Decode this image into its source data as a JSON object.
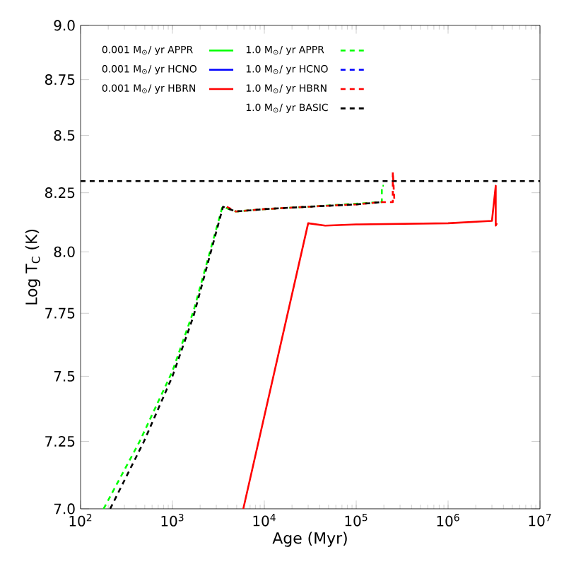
{
  "chart_data": {
    "type": "line",
    "xlabel": "Age (Myr)",
    "ylabel": "Log T$_{C}$ (K)",
    "log": "xy",
    "legend": "top left",
    "grid": false,
    "marker": "none",
    "xlim": [
      100,
      10000000
    ],
    "xticks": [
      {
        "value": 100,
        "label": "10$^{2}$"
      },
      {
        "value": 1000,
        "label": "10$^{3}$"
      },
      {
        "value": 10000,
        "label": "10$^{4}$"
      },
      {
        "value": 100000,
        "label": "10$^{5}$"
      },
      {
        "value": 1000000,
        "label": "10$^{6}$"
      },
      {
        "value": 10000000,
        "label": "10$^{7}$"
      }
    ],
    "ylim": [
      7.0,
      9.0
    ],
    "yticks": [
      {
        "value": 7.0,
        "label": "7.0"
      },
      7.25,
      7.5,
      7.75,
      {
        "value": 8.0,
        "label": "8.0"
      },
      8.25,
      8.5,
      8.75,
      {
        "value": 9.0,
        "label": "9.0"
      }
    ],
    "ref_lines": [
      {
        "axis": "y",
        "value": 8.3,
        "color": "#000000",
        "line_style": "dashed"
      }
    ],
    "series": [
      {
        "name": "0.001 M$_{⊙}$/ yr APPR",
        "color": "#00ff00",
        "line_style": "solid"
      },
      {
        "name": "0.001 M$_{⊙}$/ yr HCNO",
        "color": "#0000ff",
        "line_style": "solid"
      },
      {
        "name": "0.001 M$_{⊙}$/ yr HBRN",
        "color": "#ff0000",
        "line_style": "solid",
        "x": [
          5900,
          30000,
          46000,
          100000,
          1000000,
          3000000,
          3300000,
          3300000,
          3400000
        ],
        "values": [
          7.0,
          8.12,
          8.11,
          8.115,
          8.12,
          8.13,
          8.28,
          8.11,
          8.12
        ]
      },
      {
        "name": "1.0 M$_{⊙}$/ yr APPR",
        "color": "#00ff00",
        "line_style": "dashed",
        "x": [
          178,
          440,
          1000,
          1700,
          3500,
          4900,
          10000,
          30000,
          100000,
          190000,
          190000,
          200000
        ],
        "values": [
          7.0,
          7.25,
          7.52,
          7.76,
          8.19,
          8.17,
          8.18,
          8.19,
          null,
          8.21,
          8.28,
          8.28
        ]
      },
      {
        "name": "1.0 M$_{⊙}$/ yr HCNO",
        "color": "#0000ff",
        "line_style": "dashed"
      },
      {
        "name": "1.0 M$_{⊙}$/ yr HBRN",
        "color": "#ff0000",
        "line_style": "dashed",
        "x": [
          3900,
          4900,
          10000,
          30000,
          100000,
          190000,
          250000,
          250000,
          260000
        ],
        "values": [
          8.19,
          8.17,
          8.18,
          8.19,
          8.2,
          8.21,
          8.21,
          8.34,
          8.22
        ]
      },
      {
        "name": "1.0 M$_{⊙}$/ yr BASIC",
        "color": "#000000",
        "line_style": "dashed",
        "x": [
          210,
          490,
          1000,
          1700,
          3550,
          4900,
          10000,
          30000,
          100000,
          190000
        ],
        "values": [
          7.0,
          7.25,
          7.5,
          7.74,
          8.19,
          8.17,
          8.18,
          8.19,
          8.2,
          8.21
        ]
      }
    ]
  }
}
